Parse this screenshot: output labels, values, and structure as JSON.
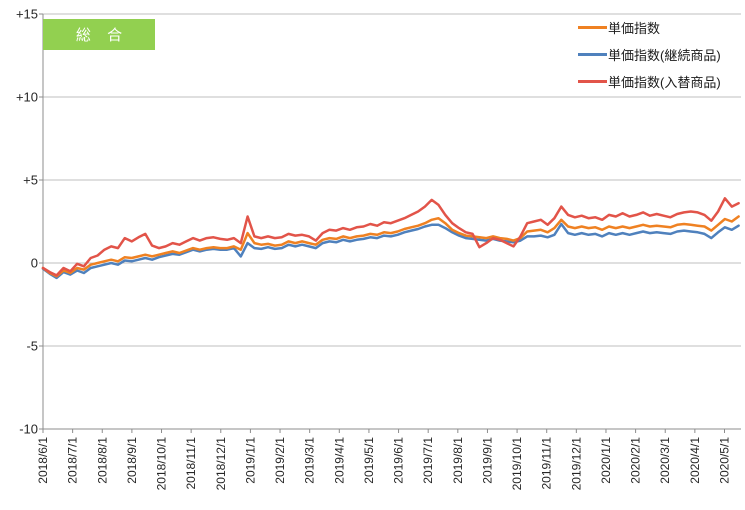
{
  "page": {
    "background": "#FFFFFF"
  },
  "badge": {
    "label": "総 合",
    "bg_color": "#92D050",
    "text_color": "#FFFFFF"
  },
  "legend": {
    "position": "top-right",
    "items": [
      {
        "label": "単価指数",
        "color": "#EF8122"
      },
      {
        "label": "単価指数(継続商品)",
        "color": "#4F81BD"
      },
      {
        "label": "単価指数(入替商品)",
        "color": "#E25449"
      }
    ]
  },
  "colors": {
    "gridline": "#BFBFBF",
    "axis": "#8C8C8C",
    "label_text": "#262626"
  },
  "chart_data": {
    "type": "line",
    "title": "総 合",
    "x_axis": {
      "tick_labels": [
        "2018/6/1",
        "2018/7/1",
        "2018/8/1",
        "2018/9/1",
        "2018/10/1",
        "2018/11/1",
        "2018/12/1",
        "2019/1/1",
        "2019/2/1",
        "2019/3/1",
        "2019/4/1",
        "2019/5/1",
        "2019/6/1",
        "2019/7/1",
        "2019/8/1",
        "2019/9/1",
        "2019/10/1",
        "2019/11/1",
        "2019/12/1",
        "2020/1/1",
        "2020/2/1",
        "2020/3/1",
        "2020/4/1",
        "2020/5/1"
      ],
      "label_rotation_deg": -90,
      "points_frequency": "weekly",
      "points_per_month": 4.345
    },
    "y_axis": {
      "tick_labels": [
        "+15",
        "+10",
        "+5",
        "0",
        "-5",
        "-10"
      ],
      "tick_values": [
        15,
        10,
        5,
        0,
        -5,
        -10
      ],
      "min": -10,
      "max": 15,
      "grid": true
    },
    "legend_position": "top-right",
    "series": [
      {
        "name": "単価指数",
        "color": "#EF8122",
        "values": [
          -0.3,
          -0.6,
          -0.8,
          -0.45,
          -0.6,
          -0.3,
          -0.4,
          -0.1,
          0.0,
          0.1,
          0.2,
          0.1,
          0.35,
          0.3,
          0.4,
          0.5,
          0.4,
          0.5,
          0.6,
          0.7,
          0.6,
          0.75,
          0.9,
          0.8,
          0.9,
          0.95,
          0.9,
          0.9,
          1.0,
          0.8,
          1.8,
          1.2,
          1.1,
          1.15,
          1.05,
          1.1,
          1.3,
          1.2,
          1.3,
          1.2,
          1.1,
          1.4,
          1.5,
          1.45,
          1.6,
          1.5,
          1.6,
          1.65,
          1.75,
          1.7,
          1.85,
          1.8,
          1.9,
          2.05,
          2.15,
          2.25,
          2.4,
          2.6,
          2.7,
          2.4,
          2.0,
          1.8,
          1.65,
          1.6,
          1.55,
          1.5,
          1.6,
          1.5,
          1.45,
          1.35,
          1.5,
          1.9,
          1.95,
          2.0,
          1.85,
          2.1,
          2.6,
          2.2,
          2.1,
          2.2,
          2.1,
          2.15,
          2.0,
          2.2,
          2.1,
          2.2,
          2.1,
          2.2,
          2.3,
          2.2,
          2.25,
          2.2,
          2.15,
          2.3,
          2.35,
          2.3,
          2.25,
          2.2,
          1.95,
          2.3,
          2.65,
          2.5,
          2.8
        ]
      },
      {
        "name": "単価指数(継続商品)",
        "color": "#4F81BD",
        "values": [
          -0.35,
          -0.65,
          -0.9,
          -0.55,
          -0.7,
          -0.45,
          -0.6,
          -0.3,
          -0.2,
          -0.1,
          0.0,
          -0.1,
          0.15,
          0.1,
          0.2,
          0.3,
          0.2,
          0.35,
          0.45,
          0.55,
          0.5,
          0.65,
          0.8,
          0.7,
          0.8,
          0.85,
          0.8,
          0.8,
          0.9,
          0.4,
          1.2,
          0.9,
          0.85,
          0.95,
          0.85,
          0.9,
          1.1,
          1.0,
          1.1,
          1.0,
          0.9,
          1.2,
          1.3,
          1.25,
          1.4,
          1.3,
          1.4,
          1.45,
          1.55,
          1.5,
          1.65,
          1.6,
          1.7,
          1.85,
          1.95,
          2.05,
          2.2,
          2.3,
          2.3,
          2.1,
          1.85,
          1.65,
          1.5,
          1.45,
          1.4,
          1.35,
          1.45,
          1.35,
          1.3,
          1.25,
          1.35,
          1.6,
          1.6,
          1.65,
          1.55,
          1.7,
          2.35,
          1.8,
          1.7,
          1.8,
          1.7,
          1.75,
          1.6,
          1.8,
          1.7,
          1.8,
          1.7,
          1.8,
          1.9,
          1.8,
          1.85,
          1.8,
          1.75,
          1.9,
          1.95,
          1.9,
          1.85,
          1.75,
          1.5,
          1.85,
          2.15,
          2.0,
          2.25
        ]
      },
      {
        "name": "単価指数(入替商品)",
        "color": "#E25449",
        "values": [
          -0.3,
          -0.55,
          -0.75,
          -0.3,
          -0.5,
          -0.05,
          -0.2,
          0.3,
          0.45,
          0.8,
          1.0,
          0.9,
          1.5,
          1.3,
          1.55,
          1.75,
          1.05,
          0.9,
          1.0,
          1.2,
          1.1,
          1.3,
          1.5,
          1.35,
          1.5,
          1.55,
          1.45,
          1.4,
          1.5,
          1.2,
          2.8,
          1.6,
          1.5,
          1.6,
          1.5,
          1.55,
          1.75,
          1.65,
          1.7,
          1.6,
          1.35,
          1.8,
          2.0,
          1.95,
          2.1,
          2.0,
          2.15,
          2.2,
          2.35,
          2.25,
          2.45,
          2.4,
          2.55,
          2.7,
          2.9,
          3.1,
          3.4,
          3.8,
          3.5,
          2.9,
          2.4,
          2.1,
          1.85,
          1.75,
          0.95,
          1.2,
          1.5,
          1.4,
          1.2,
          1.0,
          1.6,
          2.4,
          2.5,
          2.6,
          2.3,
          2.7,
          3.4,
          2.9,
          2.75,
          2.85,
          2.7,
          2.75,
          2.6,
          2.9,
          2.8,
          3.0,
          2.8,
          2.9,
          3.05,
          2.85,
          2.95,
          2.85,
          2.75,
          2.95,
          3.05,
          3.1,
          3.05,
          2.9,
          2.55,
          3.1,
          3.9,
          3.4,
          3.6
        ]
      }
    ]
  }
}
